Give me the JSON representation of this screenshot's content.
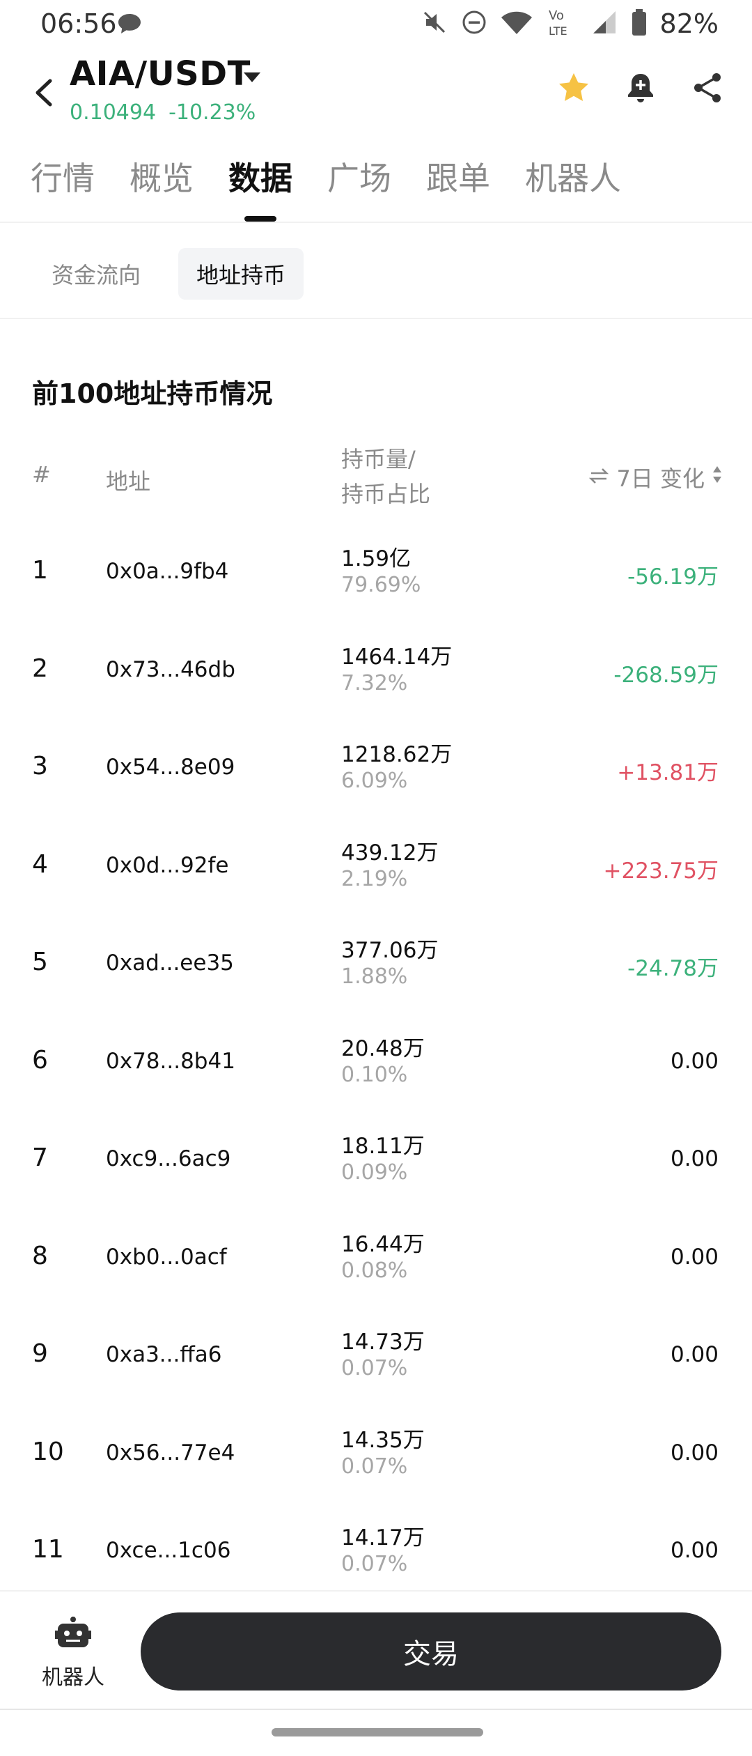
{
  "status_bar": {
    "time": "06:56",
    "battery": "82%",
    "icons": [
      "chat-icon",
      "mute-icon",
      "dnd-icon",
      "wifi-icon",
      "volte-icon",
      "signal-icon",
      "battery-icon"
    ]
  },
  "header": {
    "pair": "AIA/USDT",
    "price": "0.10494",
    "change": "-10.23%",
    "colors": {
      "favorite": "#f6c244",
      "down": "#3cb17b",
      "up": "#e05263"
    }
  },
  "tabs": [
    {
      "label": "行情"
    },
    {
      "label": "概览"
    },
    {
      "label": "数据",
      "active": true
    },
    {
      "label": "广场"
    },
    {
      "label": "跟单"
    },
    {
      "label": "机器人"
    }
  ],
  "subtabs": [
    {
      "label": "资金流向"
    },
    {
      "label": "地址持币",
      "active": true
    }
  ],
  "section": {
    "title": "前100地址持币情况",
    "col_index": "#",
    "col_address": "地址",
    "col_holding_1": "持币量/",
    "col_holding_2": "持币占比",
    "col_change": "7日 变化"
  },
  "rows": [
    {
      "idx": "1",
      "address": "0x0a...9fb4",
      "amount": "1.59亿",
      "percent": "79.69%",
      "change": "-56.19万",
      "dir": "neg"
    },
    {
      "idx": "2",
      "address": "0x73...46db",
      "amount": "1464.14万",
      "percent": "7.32%",
      "change": "-268.59万",
      "dir": "neg"
    },
    {
      "idx": "3",
      "address": "0x54...8e09",
      "amount": "1218.62万",
      "percent": "6.09%",
      "change": "+13.81万",
      "dir": "pos"
    },
    {
      "idx": "4",
      "address": "0x0d...92fe",
      "amount": "439.12万",
      "percent": "2.19%",
      "change": "+223.75万",
      "dir": "pos"
    },
    {
      "idx": "5",
      "address": "0xad...ee35",
      "amount": "377.06万",
      "percent": "1.88%",
      "change": "-24.78万",
      "dir": "neg"
    },
    {
      "idx": "6",
      "address": "0x78...8b41",
      "amount": "20.48万",
      "percent": "0.10%",
      "change": "0.00",
      "dir": "flat"
    },
    {
      "idx": "7",
      "address": "0xc9...6ac9",
      "amount": "18.11万",
      "percent": "0.09%",
      "change": "0.00",
      "dir": "flat"
    },
    {
      "idx": "8",
      "address": "0xb0...0acf",
      "amount": "16.44万",
      "percent": "0.08%",
      "change": "0.00",
      "dir": "flat"
    },
    {
      "idx": "9",
      "address": "0xa3...ffa6",
      "amount": "14.73万",
      "percent": "0.07%",
      "change": "0.00",
      "dir": "flat"
    },
    {
      "idx": "10",
      "address": "0x56...77e4",
      "amount": "14.35万",
      "percent": "0.07%",
      "change": "0.00",
      "dir": "flat"
    },
    {
      "idx": "11",
      "address": "0xce...1c06",
      "amount": "14.17万",
      "percent": "0.07%",
      "change": "0.00",
      "dir": "flat"
    }
  ],
  "bottom": {
    "robot_label": "机器人",
    "trade_label": "交易"
  }
}
